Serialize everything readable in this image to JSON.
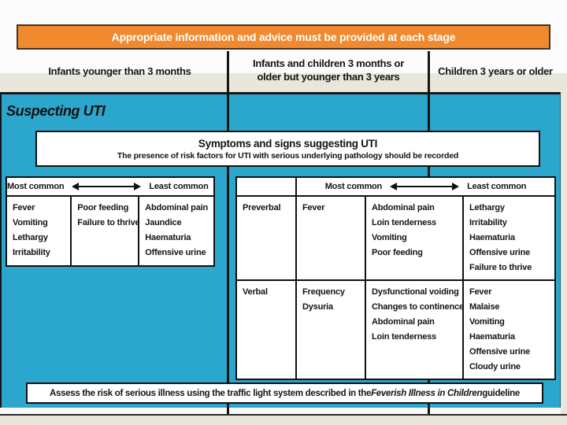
{
  "banner": {
    "text": "Appropriate information and advice must be provided at each stage"
  },
  "age_columns": {
    "col1": "Infants younger than 3 months",
    "col2_line1": "Infants and children 3 months or",
    "col2_line2_pre": "older ",
    "col2_line2_bold": "but",
    "col2_line2_post": " younger than 3 years",
    "col3": "Children 3 years or older"
  },
  "stage_label": "Suspecting UTI",
  "symptoms_box": {
    "title": "Symptoms and signs suggesting UTI",
    "subtitle": "The presence of risk factors for UTI with serious underlying pathology should be recorded"
  },
  "scale": {
    "most": "Most common",
    "least": "Least common"
  },
  "infant_table": {
    "most_common": [
      "Fever",
      "Vomiting",
      "Lethargy",
      "Irritability"
    ],
    "middle": [
      "Poor feeding",
      "Failure to thrive"
    ],
    "least_common": [
      "Abdominal pain",
      "Jaundice",
      "Haematuria",
      "Offensive urine"
    ]
  },
  "older_table": {
    "rows": [
      {
        "label": "Preverbal",
        "most_common": [
          "Fever"
        ],
        "middle": [
          "Abdominal pain",
          "Loin tenderness",
          "Vomiting",
          "Poor feeding"
        ],
        "least_common": [
          "Lethargy",
          "Irritability",
          "Haematuria",
          "Offensive urine",
          "Failure to thrive"
        ]
      },
      {
        "label": "Verbal",
        "most_common": [
          "Frequency",
          "Dysuria"
        ],
        "middle": [
          "Dysfunctional voiding",
          "Changes to continence",
          "Abdominal pain",
          "Loin tenderness"
        ],
        "least_common": [
          "Fever",
          "Malaise",
          "Vomiting",
          "Haematuria",
          "Offensive urine",
          "Cloudy urine"
        ]
      }
    ]
  },
  "bottom_bar": {
    "pre": "Assess the risk of serious illness using the traffic light system described in the ",
    "italic": "Feverish Illness in Children",
    "post": " guideline"
  },
  "colors": {
    "cyan": "#2BA7CE",
    "orange": "#F18A2E",
    "cream": "#E9E6DC"
  }
}
